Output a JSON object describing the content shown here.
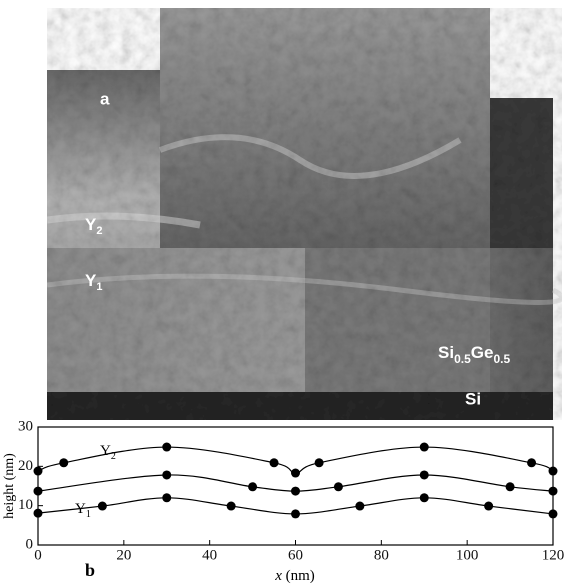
{
  "image": {
    "panel_label": "a",
    "layer_labels": [
      [
        "Y",
        "2"
      ],
      [
        "Y",
        "1"
      ]
    ],
    "alloy_label": [
      "Si",
      "0.5",
      "Ge",
      "0.5"
    ],
    "substrate_label": "Si"
  },
  "chart_data": {
    "type": "line",
    "panel_label": "b",
    "x_label": [
      "x",
      " (nm)"
    ],
    "y_label": "height (nm)",
    "xlim": [
      0,
      120
    ],
    "xticks": [
      0,
      20,
      40,
      60,
      80,
      100,
      120
    ],
    "ylim": [
      0,
      30
    ],
    "yticks": [
      0,
      10,
      20,
      30
    ],
    "series": [
      {
        "label": [
          "Y",
          "2"
        ],
        "color": "#000000",
        "x": [
          0,
          6,
          30,
          55,
          60,
          65.5,
          90,
          115,
          120
        ],
        "values": [
          18.8,
          20.9,
          24.9,
          20.9,
          18.3,
          20.9,
          24.9,
          20.9,
          18.8
        ]
      },
      {
        "color": "#000000",
        "x": [
          0,
          30,
          50,
          60,
          70,
          90,
          110,
          120
        ],
        "values": [
          13.7,
          17.8,
          14.8,
          13.7,
          14.8,
          17.8,
          14.8,
          13.7
        ]
      },
      {
        "label": [
          "Y",
          "1"
        ],
        "color": "#000000",
        "x": [
          0,
          15,
          30,
          45,
          60,
          75,
          90,
          105,
          120
        ],
        "values": [
          8.1,
          9.9,
          12,
          9.9,
          7.9,
          9.9,
          12,
          9.9,
          7.9
        ]
      }
    ]
  }
}
